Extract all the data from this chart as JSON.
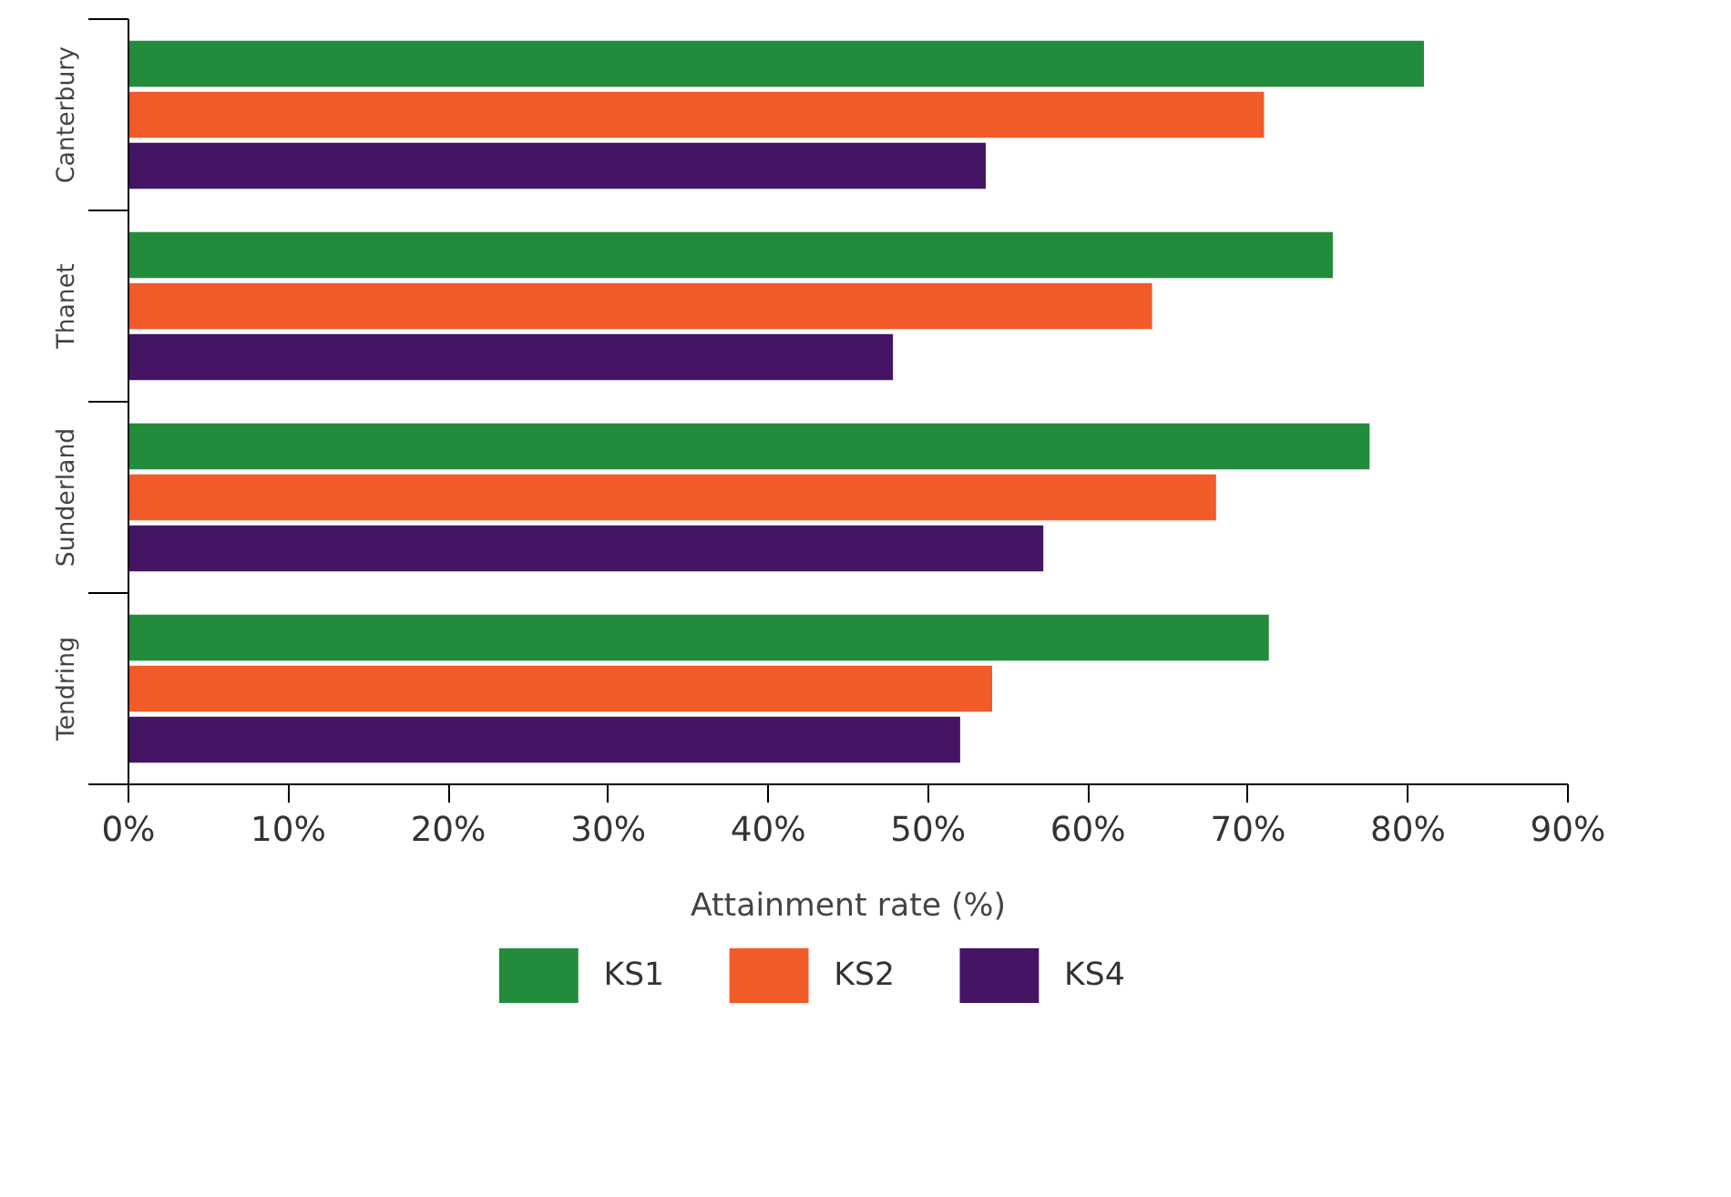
{
  "chart_data": {
    "type": "bar",
    "orientation": "horizontal",
    "xlabel": "Attainment rate (%)",
    "categories": [
      "Canterbury",
      "Thanet",
      "Sunderland",
      "Tendring"
    ],
    "series": [
      {
        "name": "KS1",
        "color": "#238b3c",
        "values": [
          81,
          75.3,
          77.6,
          71.3
        ]
      },
      {
        "name": "KS2",
        "color": "#f15a29",
        "values": [
          71,
          64,
          68,
          54
        ]
      },
      {
        "name": "KS4",
        "color": "#461465",
        "values": [
          53.6,
          47.8,
          57.2,
          52
        ]
      }
    ],
    "xlim": [
      0,
      90
    ],
    "xticks": [
      {
        "value": 0,
        "label": "0%"
      },
      {
        "value": 10,
        "label": "10%"
      },
      {
        "value": 20,
        "label": "20%"
      },
      {
        "value": 30,
        "label": "30%"
      },
      {
        "value": 40,
        "label": "40%"
      },
      {
        "value": 50,
        "label": "50%"
      },
      {
        "value": 60,
        "label": "60%"
      },
      {
        "value": 70,
        "label": "70%"
      },
      {
        "value": 80,
        "label": "80%"
      },
      {
        "value": 90,
        "label": "90%"
      }
    ],
    "grid": false,
    "legend": "bottom"
  }
}
